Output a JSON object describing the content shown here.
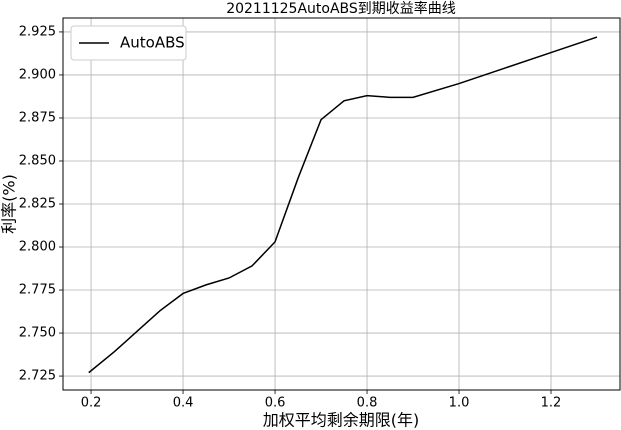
{
  "chart_data": {
    "type": "line",
    "title": "20211125AutoABS到期收益率曲线",
    "xlabel": "加权平均剩余期限(年)",
    "ylabel": "利率(%)",
    "x": [
      0.195,
      0.25,
      0.3,
      0.35,
      0.4,
      0.45,
      0.5,
      0.55,
      0.6,
      0.65,
      0.7,
      0.75,
      0.8,
      0.85,
      0.9,
      1.0,
      1.1,
      1.2,
      1.3
    ],
    "series": [
      {
        "name": "AutoABS",
        "color": "#000000",
        "values": [
          2.727,
          2.739,
          2.751,
          2.763,
          2.773,
          2.778,
          2.782,
          2.789,
          2.803,
          2.84,
          2.874,
          2.885,
          2.888,
          2.887,
          2.887,
          2.895,
          2.904,
          2.913,
          2.922
        ]
      }
    ],
    "xlim": [
      0.139,
      1.35
    ],
    "ylim": [
      2.7169,
      2.9331
    ],
    "xticks": [
      0.2,
      0.4,
      0.6,
      0.8,
      {
        "value": 1,
        "label": "1.0"
      },
      1.2
    ],
    "yticks": [
      2.725,
      {
        "value": 2.75,
        "label": "2.750"
      },
      2.775,
      {
        "value": 2.8,
        "label": "2.800"
      },
      2.825,
      {
        "value": 2.85,
        "label": "2.850"
      },
      2.875,
      {
        "value": 2.9,
        "label": "2.900"
      },
      2.925
    ],
    "grid": true,
    "legend": "upper-left"
  }
}
